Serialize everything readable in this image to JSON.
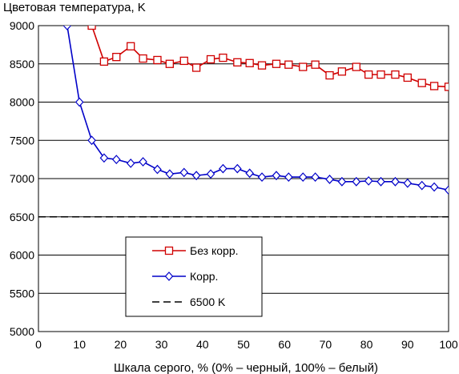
{
  "chart_data": {
    "type": "line",
    "title": "Цветовая температура, K",
    "xlabel": "Шкала серого, % (0% – черный, 100% – белый)",
    "ylabel": "",
    "xlim": [
      0,
      100
    ],
    "ylim": [
      5000,
      9000
    ],
    "x_ticks": [
      0,
      10,
      20,
      30,
      40,
      50,
      60,
      70,
      80,
      90,
      100
    ],
    "y_ticks": [
      5000,
      5500,
      6000,
      6500,
      7000,
      7500,
      8000,
      8500,
      9000
    ],
    "grid": "horizontal",
    "legend_position": "center-left",
    "series": [
      {
        "name": "Без корр.",
        "color": "#d00000",
        "marker": "square",
        "dash": false,
        "x": [
          13,
          16,
          19,
          22.5,
          25.5,
          29,
          32,
          35.5,
          38.5,
          42,
          45,
          48.5,
          51.5,
          54.5,
          58,
          61,
          64.5,
          67.5,
          71,
          74,
          77.5,
          80.5,
          83.5,
          87,
          90,
          93.5,
          96.5,
          100
        ],
        "y": [
          9000,
          8530,
          8590,
          8730,
          8570,
          8550,
          8500,
          8540,
          8450,
          8560,
          8580,
          8520,
          8510,
          8480,
          8500,
          8490,
          8460,
          8490,
          8350,
          8400,
          8460,
          8360,
          8360,
          8360,
          8320,
          8250,
          8210,
          8200
        ]
      },
      {
        "name": "Корр.",
        "color": "#0000c8",
        "marker": "diamond",
        "dash": false,
        "x": [
          7,
          10,
          13,
          16,
          19,
          22.5,
          25.5,
          29,
          32,
          35.5,
          38.5,
          42,
          45,
          48.5,
          51.5,
          54.5,
          58,
          61,
          64.5,
          67.5,
          71,
          74,
          77.5,
          80.5,
          83.5,
          87,
          90,
          93.5,
          96.5,
          100
        ],
        "y": [
          9000,
          8000,
          7500,
          7270,
          7250,
          7200,
          7220,
          7120,
          7060,
          7080,
          7040,
          7060,
          7130,
          7130,
          7070,
          7020,
          7040,
          7020,
          7020,
          7020,
          6990,
          6960,
          6960,
          6970,
          6960,
          6960,
          6940,
          6910,
          6890,
          6850
        ]
      },
      {
        "name": "6500 K",
        "color": "#000000",
        "marker": "none",
        "dash": true,
        "x": [
          0,
          100
        ],
        "y": [
          6500,
          6500
        ]
      }
    ]
  }
}
